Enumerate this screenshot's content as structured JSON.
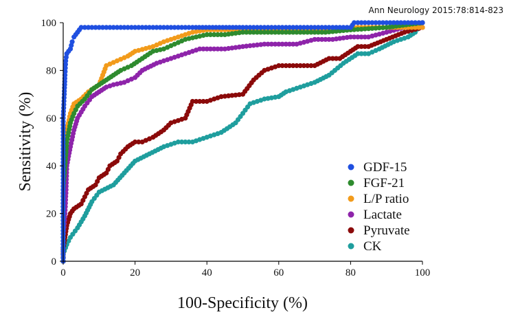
{
  "citation": "Ann Neurology 2015:78:814-823",
  "chart_data": {
    "type": "line",
    "xlabel": "100-Specificity (%)",
    "ylabel": "Sensitivity (%)",
    "xlim": [
      0,
      100
    ],
    "ylim": [
      0,
      100
    ],
    "x_ticks": [
      0,
      20,
      40,
      60,
      80,
      100
    ],
    "y_ticks": [
      0,
      20,
      40,
      60,
      80,
      100
    ],
    "grid": false,
    "legend_position": "bottom-right",
    "series": [
      {
        "name": "GDF-15",
        "color": "#1f4fe0",
        "points": [
          [
            0,
            0
          ],
          [
            0,
            10
          ],
          [
            0,
            20
          ],
          [
            0,
            30
          ],
          [
            0,
            40
          ],
          [
            0,
            50
          ],
          [
            0,
            60
          ],
          [
            0.3,
            70
          ],
          [
            0.5,
            78
          ],
          [
            0.7,
            84
          ],
          [
            1,
            87
          ],
          [
            2,
            89
          ],
          [
            2.5,
            92
          ],
          [
            3,
            94
          ],
          [
            4,
            96
          ],
          [
            5,
            98
          ],
          [
            10,
            98
          ],
          [
            20,
            98
          ],
          [
            30,
            98
          ],
          [
            36,
            98
          ],
          [
            50,
            98
          ],
          [
            60,
            98
          ],
          [
            70,
            98
          ],
          [
            80,
            98
          ],
          [
            81,
            100
          ],
          [
            90,
            100
          ],
          [
            100,
            100
          ]
        ]
      },
      {
        "name": "FGF-21",
        "color": "#2e8b2e",
        "points": [
          [
            0,
            0
          ],
          [
            0,
            20
          ],
          [
            0,
            30
          ],
          [
            0.5,
            40
          ],
          [
            1,
            50
          ],
          [
            2,
            58
          ],
          [
            3,
            62
          ],
          [
            4,
            65
          ],
          [
            6,
            68
          ],
          [
            8,
            72
          ],
          [
            10,
            74
          ],
          [
            12,
            76
          ],
          [
            14,
            78
          ],
          [
            16,
            80
          ],
          [
            19,
            82
          ],
          [
            22,
            85
          ],
          [
            25,
            88
          ],
          [
            28,
            89
          ],
          [
            31,
            91
          ],
          [
            34,
            93
          ],
          [
            37,
            94
          ],
          [
            40,
            95
          ],
          [
            45,
            95
          ],
          [
            50,
            96
          ],
          [
            60,
            96
          ],
          [
            70,
            96
          ],
          [
            73,
            96
          ],
          [
            80,
            97
          ],
          [
            90,
            98
          ],
          [
            100,
            100
          ]
        ]
      },
      {
        "name": "L/P ratio",
        "color": "#f29b1b",
        "points": [
          [
            0,
            0
          ],
          [
            0,
            30
          ],
          [
            0.5,
            45
          ],
          [
            1,
            55
          ],
          [
            2,
            62
          ],
          [
            3,
            66
          ],
          [
            5,
            68
          ],
          [
            7,
            71
          ],
          [
            10,
            74
          ],
          [
            11,
            78
          ],
          [
            12,
            82
          ],
          [
            15,
            84
          ],
          [
            18,
            86
          ],
          [
            20,
            88
          ],
          [
            25,
            90
          ],
          [
            28,
            92
          ],
          [
            32,
            94
          ],
          [
            36,
            96
          ],
          [
            40,
            97
          ],
          [
            45,
            97
          ],
          [
            50,
            97
          ],
          [
            60,
            97
          ],
          [
            70,
            97
          ],
          [
            80,
            98
          ],
          [
            90,
            98
          ],
          [
            100,
            98
          ]
        ]
      },
      {
        "name": "Lactate",
        "color": "#8e24aa",
        "points": [
          [
            0,
            0
          ],
          [
            0,
            10
          ],
          [
            0.5,
            20
          ],
          [
            0.8,
            30
          ],
          [
            1,
            40
          ],
          [
            2,
            48
          ],
          [
            3,
            55
          ],
          [
            4,
            60
          ],
          [
            6,
            65
          ],
          [
            8,
            69
          ],
          [
            10,
            71
          ],
          [
            12,
            73
          ],
          [
            14,
            74
          ],
          [
            17,
            75
          ],
          [
            20,
            77
          ],
          [
            22,
            80
          ],
          [
            26,
            83
          ],
          [
            30,
            85
          ],
          [
            34,
            87
          ],
          [
            38,
            89
          ],
          [
            45,
            89
          ],
          [
            50,
            90
          ],
          [
            56,
            91
          ],
          [
            65,
            91
          ],
          [
            70,
            93
          ],
          [
            75,
            93
          ],
          [
            80,
            94
          ],
          [
            85,
            94
          ],
          [
            90,
            96
          ],
          [
            95,
            98
          ],
          [
            100,
            100
          ]
        ]
      },
      {
        "name": "Pyruvate",
        "color": "#8b0a0a",
        "points": [
          [
            0,
            0
          ],
          [
            0,
            5
          ],
          [
            0.5,
            10
          ],
          [
            1,
            15
          ],
          [
            2,
            20
          ],
          [
            3,
            22
          ],
          [
            5,
            24
          ],
          [
            6,
            27
          ],
          [
            7,
            30
          ],
          [
            9,
            32
          ],
          [
            10,
            35
          ],
          [
            12,
            37
          ],
          [
            13,
            40
          ],
          [
            15,
            42
          ],
          [
            16,
            45
          ],
          [
            18,
            48
          ],
          [
            20,
            50
          ],
          [
            22,
            50
          ],
          [
            25,
            52
          ],
          [
            28,
            55
          ],
          [
            30,
            58
          ],
          [
            34,
            60
          ],
          [
            36,
            67
          ],
          [
            40,
            67
          ],
          [
            44,
            69
          ],
          [
            50,
            70
          ],
          [
            53,
            76
          ],
          [
            56,
            80
          ],
          [
            60,
            82
          ],
          [
            65,
            82
          ],
          [
            70,
            82
          ],
          [
            74,
            85
          ],
          [
            77,
            85
          ],
          [
            80,
            88
          ],
          [
            82,
            90
          ],
          [
            85,
            90
          ],
          [
            90,
            93
          ],
          [
            95,
            96
          ],
          [
            100,
            98
          ]
        ]
      },
      {
        "name": "CK",
        "color": "#1f9e9e",
        "points": [
          [
            0,
            0
          ],
          [
            0,
            3
          ],
          [
            1,
            7
          ],
          [
            2,
            10
          ],
          [
            4,
            14
          ],
          [
            6,
            19
          ],
          [
            8,
            25
          ],
          [
            10,
            29
          ],
          [
            14,
            32
          ],
          [
            17,
            37
          ],
          [
            20,
            42
          ],
          [
            24,
            45
          ],
          [
            28,
            48
          ],
          [
            32,
            50
          ],
          [
            36,
            50
          ],
          [
            40,
            52
          ],
          [
            44,
            54
          ],
          [
            48,
            58
          ],
          [
            50,
            62
          ],
          [
            52,
            66
          ],
          [
            56,
            68
          ],
          [
            60,
            69
          ],
          [
            62,
            71
          ],
          [
            66,
            73
          ],
          [
            70,
            75
          ],
          [
            74,
            78
          ],
          [
            78,
            83
          ],
          [
            82,
            87
          ],
          [
            85,
            87
          ],
          [
            88,
            89
          ],
          [
            92,
            92
          ],
          [
            96,
            94
          ],
          [
            98,
            96
          ],
          [
            100,
            100
          ]
        ]
      }
    ]
  }
}
